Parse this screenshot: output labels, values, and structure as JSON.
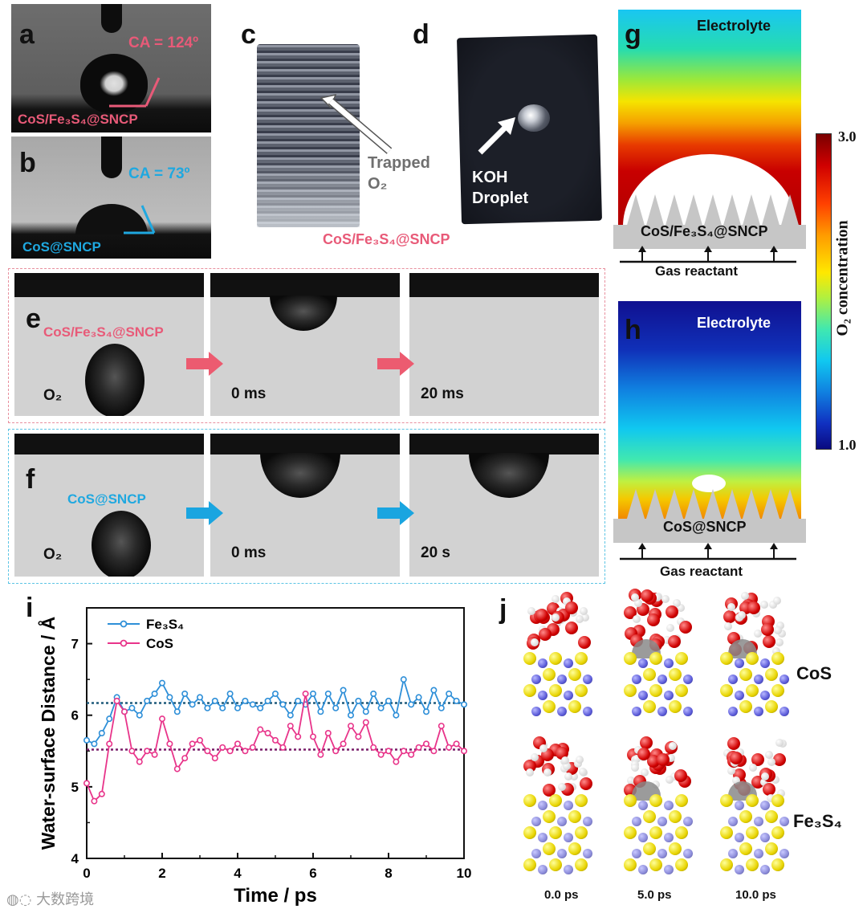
{
  "panels": {
    "a": {
      "label": "a",
      "ca_text": "CA = 124º",
      "sample": "CoS/Fe₃S₄@SNCP",
      "color": "#e85a78"
    },
    "b": {
      "label": "b",
      "ca_text": "CA = 73º",
      "sample": "CoS@SNCP",
      "color": "#1fa8e0"
    },
    "c": {
      "label": "c",
      "annotation_line1": "Trapped",
      "annotation_line2": "O₂"
    },
    "d": {
      "label": "d",
      "annotation_line1": "KOH",
      "annotation_line2": "Droplet"
    },
    "cd_caption": "CoS/Fe₃S₄@SNCP",
    "e": {
      "label": "e",
      "sample": "CoS/Fe₃S₄@SNCP",
      "frames": [
        "O₂",
        "0 ms",
        "20 ms"
      ],
      "color": "#e85a78"
    },
    "f": {
      "label": "f",
      "sample": "CoS@SNCP",
      "frames": [
        "O₂",
        "0 ms",
        "20 s"
      ],
      "color": "#1fa8e0"
    },
    "g": {
      "label": "g",
      "top": "Electrolyte",
      "substrate": "CoS/Fe₃S₄@SNCP",
      "bottom": "Gas reactant"
    },
    "h": {
      "label": "h",
      "top": "Electrolyte",
      "substrate": "CoS@SNCP",
      "bottom": "Gas reactant"
    },
    "colorbar": {
      "max": "3.0",
      "min": "1.0",
      "title": "O₂ concentration"
    },
    "i": {
      "label": "i"
    },
    "j": {
      "label": "j",
      "row1": "CoS",
      "row2": "Fe₃S₄",
      "times": [
        "0.0 ps",
        "5.0 ps",
        "10.0 ps"
      ]
    }
  },
  "watermark": "大数跨境",
  "chart_data": {
    "type": "line",
    "xlabel": "Time / ps",
    "ylabel": "Water-surface Distance / Å",
    "xlim": [
      0,
      10
    ],
    "ylim": [
      4,
      7.5
    ],
    "xticks": [
      "0",
      "2",
      "4",
      "6",
      "8",
      "10"
    ],
    "yticks": [
      "4",
      "5",
      "6",
      "7"
    ],
    "legend_position": "top-left",
    "series": [
      {
        "name": "Fe₃S₄",
        "color": "#2e8fd8",
        "mean": 6.17,
        "x": [
          0.0,
          0.2,
          0.4,
          0.6,
          0.8,
          1.0,
          1.2,
          1.4,
          1.6,
          1.8,
          2.0,
          2.2,
          2.4,
          2.6,
          2.8,
          3.0,
          3.2,
          3.4,
          3.6,
          3.8,
          4.0,
          4.2,
          4.4,
          4.6,
          4.8,
          5.0,
          5.2,
          5.4,
          5.6,
          5.8,
          6.0,
          6.2,
          6.4,
          6.6,
          6.8,
          7.0,
          7.2,
          7.4,
          7.6,
          7.8,
          8.0,
          8.2,
          8.4,
          8.6,
          8.8,
          9.0,
          9.2,
          9.4,
          9.6,
          9.8,
          10.0
        ],
        "y": [
          5.65,
          5.6,
          5.75,
          5.95,
          6.25,
          6.05,
          6.1,
          6.0,
          6.2,
          6.3,
          6.45,
          6.25,
          6.05,
          6.3,
          6.15,
          6.25,
          6.1,
          6.2,
          6.1,
          6.3,
          6.1,
          6.2,
          6.15,
          6.1,
          6.2,
          6.3,
          6.15,
          6.0,
          6.2,
          6.15,
          6.3,
          6.05,
          6.3,
          6.1,
          6.35,
          6.0,
          6.2,
          6.05,
          6.3,
          6.1,
          6.2,
          6.0,
          6.5,
          6.15,
          6.25,
          6.05,
          6.35,
          6.1,
          6.3,
          6.2,
          6.15
        ]
      },
      {
        "name": "CoS",
        "color": "#e8348a",
        "mean": 5.52,
        "x": [
          0.0,
          0.2,
          0.4,
          0.6,
          0.8,
          1.0,
          1.2,
          1.4,
          1.6,
          1.8,
          2.0,
          2.2,
          2.4,
          2.6,
          2.8,
          3.0,
          3.2,
          3.4,
          3.6,
          3.8,
          4.0,
          4.2,
          4.4,
          4.6,
          4.8,
          5.0,
          5.2,
          5.4,
          5.6,
          5.8,
          6.0,
          6.2,
          6.4,
          6.6,
          6.8,
          7.0,
          7.2,
          7.4,
          7.6,
          7.8,
          8.0,
          8.2,
          8.4,
          8.6,
          8.8,
          9.0,
          9.2,
          9.4,
          9.6,
          9.8,
          10.0
        ],
        "y": [
          5.05,
          4.8,
          4.9,
          5.6,
          6.2,
          6.05,
          5.5,
          5.35,
          5.5,
          5.45,
          5.95,
          5.6,
          5.25,
          5.4,
          5.6,
          5.65,
          5.5,
          5.4,
          5.55,
          5.5,
          5.6,
          5.5,
          5.55,
          5.8,
          5.75,
          5.65,
          5.55,
          5.85,
          5.7,
          6.3,
          5.7,
          5.45,
          5.75,
          5.5,
          5.6,
          5.85,
          5.7,
          5.9,
          5.55,
          5.45,
          5.5,
          5.35,
          5.5,
          5.45,
          5.55,
          5.6,
          5.5,
          5.85,
          5.55,
          5.6,
          5.5
        ]
      }
    ]
  }
}
